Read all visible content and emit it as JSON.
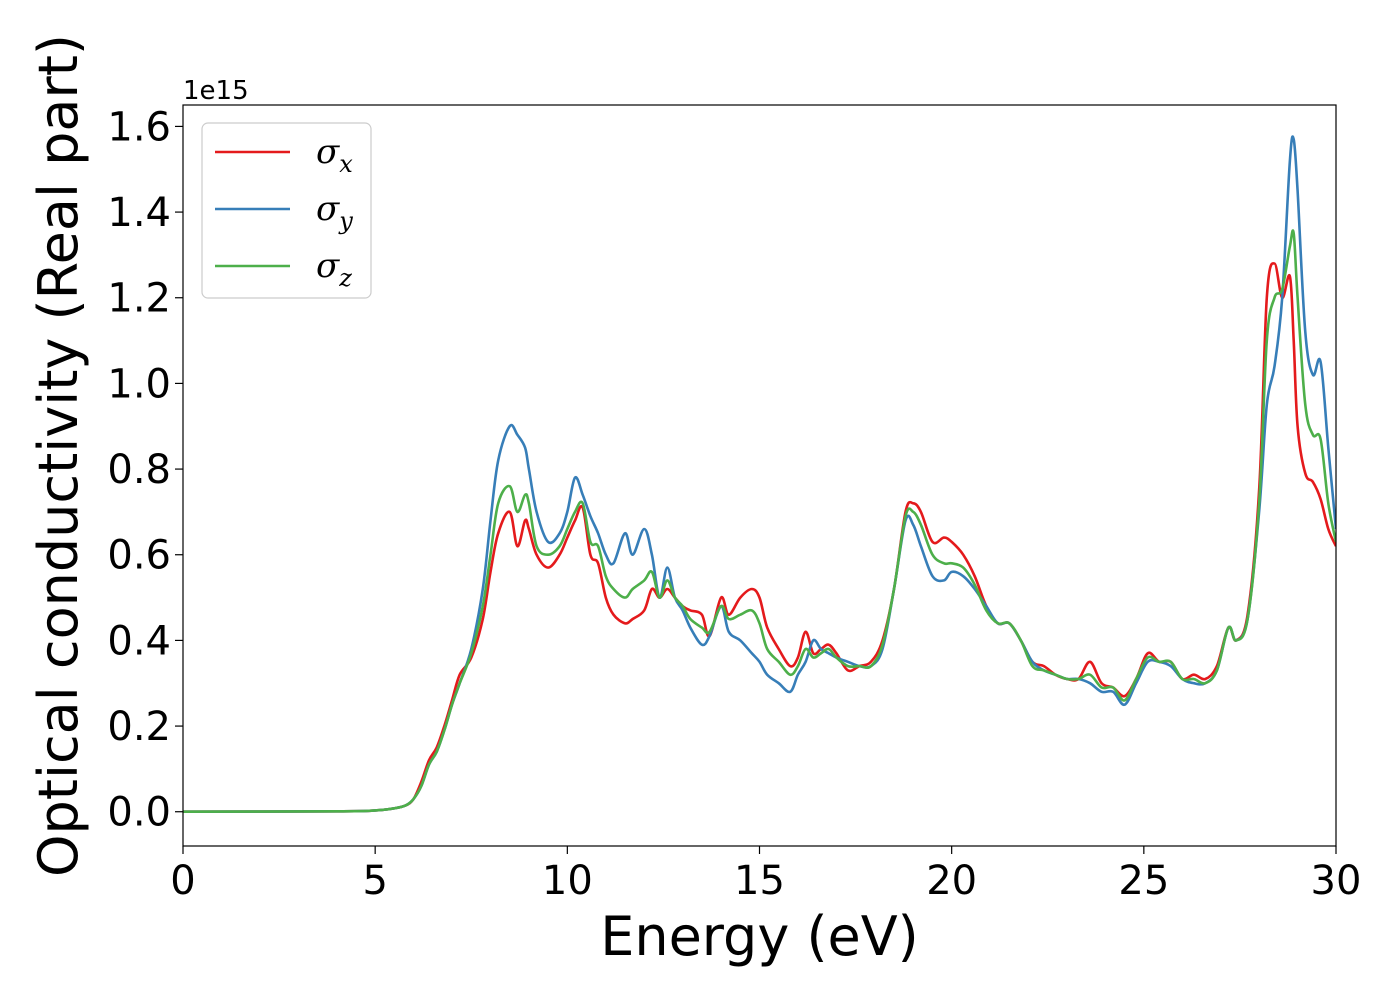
{
  "chart_data": {
    "type": "line",
    "title": "",
    "xlabel": "Energy (eV)",
    "ylabel": "Optical conductivity (Real part)",
    "y_offset_label": "1e15",
    "xlim": [
      0,
      30
    ],
    "ylim": [
      -0.08,
      1.65
    ],
    "xticks": [
      0,
      5,
      10,
      15,
      20,
      25,
      30
    ],
    "xtick_labels": [
      "0",
      "5",
      "10",
      "15",
      "20",
      "25",
      "30"
    ],
    "yticks": [
      0.0,
      0.2,
      0.4,
      0.6,
      0.8,
      1.0,
      1.2,
      1.4,
      1.6
    ],
    "ytick_labels": [
      "0.0",
      "0.2",
      "0.4",
      "0.6",
      "0.8",
      "1.0",
      "1.2",
      "1.4",
      "1.6"
    ],
    "grid": false,
    "legend_position": "top-left",
    "x": [
      0,
      4,
      5,
      5.5,
      5.8,
      6.0,
      6.2,
      6.4,
      6.6,
      6.8,
      7.0,
      7.2,
      7.5,
      7.8,
      8.0,
      8.2,
      8.5,
      8.7,
      8.9,
      9.0,
      9.2,
      9.5,
      9.8,
      10.0,
      10.2,
      10.4,
      10.6,
      10.8,
      11.0,
      11.2,
      11.5,
      11.7,
      12.0,
      12.2,
      12.4,
      12.6,
      12.8,
      13.0,
      13.2,
      13.5,
      13.7,
      14.0,
      14.2,
      14.5,
      14.8,
      15.0,
      15.2,
      15.5,
      15.8,
      16.0,
      16.2,
      16.4,
      16.6,
      16.8,
      17.0,
      17.3,
      17.6,
      17.9,
      18.2,
      18.5,
      18.8,
      19.0,
      19.2,
      19.5,
      19.8,
      20.0,
      20.3,
      20.6,
      20.9,
      21.2,
      21.5,
      21.8,
      22.1,
      22.4,
      22.7,
      23.0,
      23.3,
      23.6,
      23.9,
      24.2,
      24.5,
      24.8,
      25.1,
      25.4,
      25.7,
      26.0,
      26.3,
      26.6,
      26.9,
      27.2,
      27.4,
      27.7,
      28.0,
      28.2,
      28.4,
      28.6,
      28.8,
      28.9,
      29.0,
      29.2,
      29.4,
      29.6,
      29.8,
      30.0
    ],
    "series": [
      {
        "name": "σx",
        "label_base": "σ",
        "label_sub": "x",
        "color": "#e41a1c",
        "values": [
          0.0,
          0.001,
          0.003,
          0.008,
          0.015,
          0.03,
          0.07,
          0.12,
          0.15,
          0.2,
          0.26,
          0.32,
          0.36,
          0.45,
          0.56,
          0.65,
          0.7,
          0.62,
          0.68,
          0.66,
          0.6,
          0.57,
          0.6,
          0.64,
          0.68,
          0.71,
          0.6,
          0.58,
          0.5,
          0.46,
          0.44,
          0.45,
          0.47,
          0.52,
          0.5,
          0.52,
          0.5,
          0.48,
          0.47,
          0.46,
          0.41,
          0.5,
          0.46,
          0.5,
          0.52,
          0.5,
          0.43,
          0.38,
          0.34,
          0.36,
          0.42,
          0.37,
          0.38,
          0.39,
          0.37,
          0.33,
          0.34,
          0.35,
          0.4,
          0.52,
          0.7,
          0.72,
          0.7,
          0.63,
          0.64,
          0.63,
          0.6,
          0.55,
          0.48,
          0.44,
          0.44,
          0.4,
          0.35,
          0.34,
          0.32,
          0.31,
          0.31,
          0.35,
          0.3,
          0.29,
          0.27,
          0.31,
          0.37,
          0.35,
          0.35,
          0.31,
          0.32,
          0.31,
          0.34,
          0.43,
          0.4,
          0.46,
          0.75,
          1.2,
          1.28,
          1.2,
          1.25,
          1.1,
          0.9,
          0.79,
          0.77,
          0.73,
          0.66,
          0.62
        ]
      },
      {
        "name": "σy",
        "label_base": "σ",
        "label_sub": "y",
        "color": "#377eb8",
        "values": [
          0.0,
          0.001,
          0.003,
          0.008,
          0.015,
          0.03,
          0.06,
          0.11,
          0.14,
          0.19,
          0.25,
          0.3,
          0.38,
          0.52,
          0.68,
          0.82,
          0.9,
          0.88,
          0.85,
          0.8,
          0.7,
          0.63,
          0.65,
          0.7,
          0.78,
          0.74,
          0.69,
          0.65,
          0.6,
          0.58,
          0.65,
          0.6,
          0.66,
          0.6,
          0.5,
          0.57,
          0.5,
          0.47,
          0.43,
          0.39,
          0.41,
          0.48,
          0.42,
          0.4,
          0.37,
          0.35,
          0.32,
          0.3,
          0.28,
          0.32,
          0.35,
          0.4,
          0.38,
          0.37,
          0.36,
          0.35,
          0.34,
          0.34,
          0.38,
          0.52,
          0.68,
          0.67,
          0.62,
          0.55,
          0.54,
          0.56,
          0.55,
          0.52,
          0.48,
          0.44,
          0.44,
          0.4,
          0.35,
          0.33,
          0.32,
          0.31,
          0.31,
          0.3,
          0.28,
          0.28,
          0.25,
          0.3,
          0.35,
          0.35,
          0.34,
          0.31,
          0.3,
          0.3,
          0.33,
          0.43,
          0.4,
          0.45,
          0.7,
          0.95,
          1.04,
          1.2,
          1.52,
          1.57,
          1.45,
          1.12,
          1.02,
          1.05,
          0.85,
          0.66
        ]
      },
      {
        "name": "σz",
        "label_base": "σ",
        "label_sub": "z",
        "color": "#4daf4a",
        "values": [
          0.0,
          0.001,
          0.003,
          0.008,
          0.015,
          0.03,
          0.06,
          0.11,
          0.14,
          0.19,
          0.25,
          0.3,
          0.37,
          0.48,
          0.6,
          0.72,
          0.76,
          0.7,
          0.74,
          0.72,
          0.62,
          0.6,
          0.62,
          0.66,
          0.7,
          0.72,
          0.63,
          0.62,
          0.55,
          0.52,
          0.5,
          0.52,
          0.54,
          0.56,
          0.5,
          0.54,
          0.5,
          0.48,
          0.45,
          0.43,
          0.42,
          0.48,
          0.45,
          0.46,
          0.47,
          0.44,
          0.38,
          0.35,
          0.32,
          0.34,
          0.38,
          0.36,
          0.37,
          0.38,
          0.36,
          0.34,
          0.34,
          0.34,
          0.39,
          0.52,
          0.69,
          0.7,
          0.67,
          0.6,
          0.58,
          0.58,
          0.57,
          0.53,
          0.47,
          0.44,
          0.44,
          0.4,
          0.34,
          0.33,
          0.32,
          0.31,
          0.31,
          0.32,
          0.29,
          0.29,
          0.26,
          0.31,
          0.36,
          0.35,
          0.35,
          0.31,
          0.31,
          0.3,
          0.33,
          0.43,
          0.4,
          0.45,
          0.72,
          1.1,
          1.2,
          1.22,
          1.32,
          1.35,
          1.2,
          0.95,
          0.88,
          0.87,
          0.72,
          0.63
        ]
      }
    ]
  }
}
